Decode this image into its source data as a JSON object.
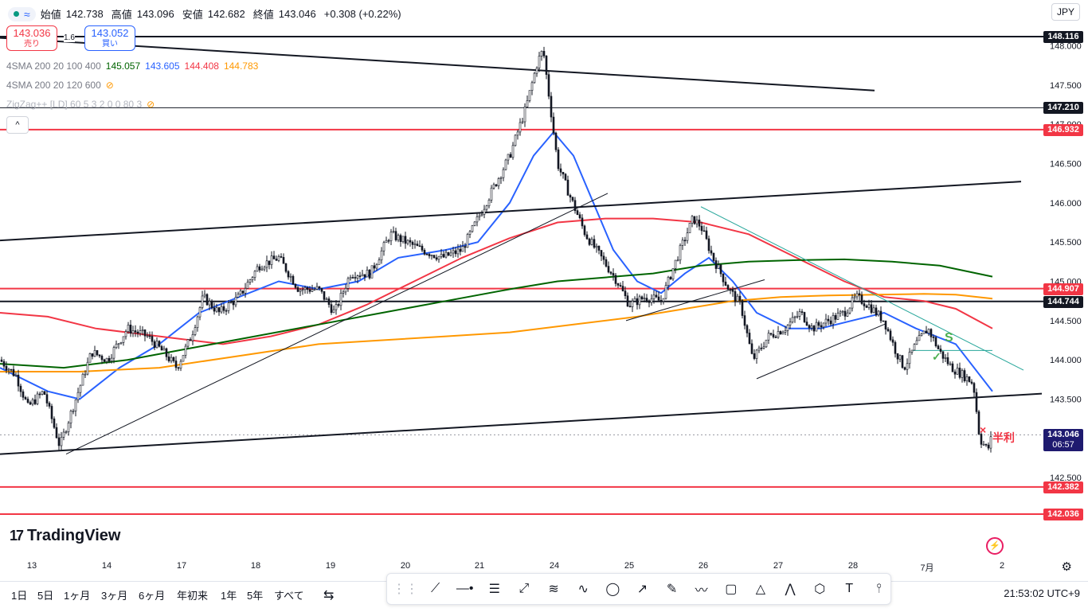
{
  "header": {
    "open_label": "始値",
    "open": "142.738",
    "high_label": "高値",
    "high": "143.096",
    "low_label": "安値",
    "low": "142.682",
    "close_label": "終値",
    "close": "143.046",
    "change": "+0.308 (+0.22%)",
    "currency": "JPY"
  },
  "trade": {
    "sell_price": "143.036",
    "sell_label": "売り",
    "buy_price": "143.052",
    "buy_label": "買い",
    "spread": "1.6"
  },
  "indicators": [
    {
      "name": "4SMA 200 20 100 400",
      "values": [
        "145.057",
        "143.605",
        "144.408",
        "144.783"
      ]
    },
    {
      "name": "4SMA 200 20 120 600",
      "values": []
    },
    {
      "name": "ZigZag++ [LD] 60 5 3 2 0 0 80 3",
      "values": []
    }
  ],
  "price_labels": [
    {
      "price": 148.116,
      "text": "148.116",
      "color": "#131722"
    },
    {
      "price": 147.21,
      "text": "147.210",
      "color": "#131722"
    },
    {
      "price": 146.932,
      "text": "146.932",
      "color": "#f23645"
    },
    {
      "price": 144.907,
      "text": "144.907",
      "color": "#f23645"
    },
    {
      "price": 144.744,
      "text": "144.744",
      "color": "#131722"
    },
    {
      "price": 142.382,
      "text": "142.382",
      "color": "#f23645"
    },
    {
      "price": 142.036,
      "text": "142.036",
      "color": "#f23645"
    }
  ],
  "current": {
    "price": 143.046,
    "text": "143.046",
    "countdown": "06:57",
    "color": "#1e1a6f"
  },
  "annotations": {
    "half": "半利",
    "s": "S"
  },
  "logo": "TradingView",
  "ranges": [
    "1日",
    "5日",
    "1ヶ月",
    "3ヶ月",
    "6ヶ月",
    "年初来",
    "1年",
    "5年",
    "すべて"
  ],
  "time": "21:53:02 UTC+9",
  "chart_data": {
    "type": "candlestick",
    "ylim": [
      142.2,
      148.2
    ],
    "yticks": [
      "148.000",
      "147.500",
      "147.000",
      "146.500",
      "146.000",
      "145.500",
      "145.000",
      "144.500",
      "144.000",
      "143.500",
      "143.000",
      "142.500"
    ],
    "xticks": [
      "13",
      "14",
      "17",
      "18",
      "19",
      "20",
      "21",
      "24",
      "25",
      "26",
      "27",
      "28",
      "7月",
      "2"
    ],
    "close_path": [
      [
        0,
        144.0
      ],
      [
        20,
        143.8
      ],
      [
        35,
        143.4
      ],
      [
        55,
        143.6
      ],
      [
        75,
        142.9
      ],
      [
        95,
        143.5
      ],
      [
        115,
        144.1
      ],
      [
        135,
        144.0
      ],
      [
        160,
        144.4
      ],
      [
        185,
        144.3
      ],
      [
        205,
        144.1
      ],
      [
        222,
        143.9
      ],
      [
        240,
        144.3
      ],
      [
        255,
        144.8
      ],
      [
        275,
        144.6
      ],
      [
        300,
        144.8
      ],
      [
        325,
        145.2
      ],
      [
        350,
        145.3
      ],
      [
        375,
        144.9
      ],
      [
        400,
        144.9
      ],
      [
        420,
        144.6
      ],
      [
        440,
        145.1
      ],
      [
        465,
        145.1
      ],
      [
        490,
        145.6
      ],
      [
        510,
        145.5
      ],
      [
        530,
        145.4
      ],
      [
        555,
        145.3
      ],
      [
        580,
        145.4
      ],
      [
        600,
        145.8
      ],
      [
        620,
        146.2
      ],
      [
        640,
        146.6
      ],
      [
        660,
        147.2
      ],
      [
        675,
        147.8
      ],
      [
        682,
        147.95
      ],
      [
        690,
        147.3
      ],
      [
        700,
        146.5
      ],
      [
        715,
        146.1
      ],
      [
        735,
        145.6
      ],
      [
        755,
        145.3
      ],
      [
        775,
        145.0
      ],
      [
        790,
        144.7
      ],
      [
        810,
        144.8
      ],
      [
        830,
        144.75
      ],
      [
        850,
        145.3
      ],
      [
        870,
        145.8
      ],
      [
        880,
        145.7
      ],
      [
        895,
        145.3
      ],
      [
        915,
        144.9
      ],
      [
        930,
        144.7
      ],
      [
        945,
        144.0
      ],
      [
        965,
        144.3
      ],
      [
        985,
        144.4
      ],
      [
        1005,
        144.6
      ],
      [
        1020,
        144.4
      ],
      [
        1040,
        144.5
      ],
      [
        1060,
        144.6
      ],
      [
        1075,
        144.8
      ],
      [
        1090,
        144.7
      ],
      [
        1110,
        144.5
      ],
      [
        1125,
        144.1
      ],
      [
        1135,
        143.9
      ],
      [
        1150,
        144.2
      ],
      [
        1165,
        144.4
      ],
      [
        1180,
        144.1
      ],
      [
        1195,
        143.9
      ],
      [
        1210,
        143.8
      ],
      [
        1222,
        143.7
      ],
      [
        1230,
        143.0
      ],
      [
        1240,
        142.85
      ],
      [
        1246,
        143.05
      ]
    ],
    "series": [
      {
        "values": [
          [
            0,
            143.9
          ],
          [
            60,
            143.6
          ],
          [
            100,
            143.5
          ],
          [
            150,
            143.9
          ],
          [
            200,
            144.2
          ],
          [
            250,
            144.6
          ],
          [
            300,
            144.8
          ],
          [
            350,
            145.0
          ],
          [
            400,
            144.9
          ],
          [
            450,
            145.0
          ],
          [
            500,
            145.3
          ],
          [
            560,
            145.4
          ],
          [
            600,
            145.5
          ],
          [
            640,
            146.0
          ],
          [
            670,
            146.6
          ],
          [
            695,
            146.9
          ],
          [
            720,
            146.6
          ],
          [
            745,
            146.0
          ],
          [
            770,
            145.4
          ],
          [
            800,
            145.0
          ],
          [
            830,
            144.85
          ],
          [
            860,
            145.1
          ],
          [
            890,
            145.3
          ],
          [
            920,
            145.0
          ],
          [
            950,
            144.6
          ],
          [
            990,
            144.4
          ],
          [
            1030,
            144.4
          ],
          [
            1070,
            144.5
          ],
          [
            1110,
            144.6
          ],
          [
            1150,
            144.4
          ],
          [
            1200,
            144.2
          ],
          [
            1246,
            143.6
          ]
        ],
        "color": "#2962ff"
      },
      {
        "values": [
          [
            0,
            144.6
          ],
          [
            60,
            144.55
          ],
          [
            120,
            144.4
          ],
          [
            200,
            144.3
          ],
          [
            280,
            144.2
          ],
          [
            340,
            144.3
          ],
          [
            400,
            144.45
          ],
          [
            460,
            144.7
          ],
          [
            520,
            145.0
          ],
          [
            580,
            145.3
          ],
          [
            640,
            145.55
          ],
          [
            700,
            145.75
          ],
          [
            760,
            145.8
          ],
          [
            820,
            145.8
          ],
          [
            880,
            145.75
          ],
          [
            940,
            145.6
          ],
          [
            1000,
            145.3
          ],
          [
            1060,
            145.0
          ],
          [
            1110,
            144.8
          ],
          [
            1160,
            144.75
          ],
          [
            1200,
            144.65
          ],
          [
            1246,
            144.4
          ]
        ],
        "color": "#f23645"
      },
      {
        "values": [
          [
            0,
            143.95
          ],
          [
            80,
            143.9
          ],
          [
            160,
            144.0
          ],
          [
            240,
            144.15
          ],
          [
            320,
            144.3
          ],
          [
            400,
            144.45
          ],
          [
            480,
            144.6
          ],
          [
            560,
            144.75
          ],
          [
            640,
            144.9
          ],
          [
            700,
            145.0
          ],
          [
            760,
            145.05
          ],
          [
            820,
            145.1
          ],
          [
            880,
            145.2
          ],
          [
            940,
            145.25
          ],
          [
            1000,
            145.27
          ],
          [
            1060,
            145.28
          ],
          [
            1120,
            145.25
          ],
          [
            1180,
            145.2
          ],
          [
            1246,
            145.06
          ]
        ],
        "color": "#006400"
      },
      {
        "values": [
          [
            0,
            143.85
          ],
          [
            100,
            143.85
          ],
          [
            200,
            143.9
          ],
          [
            300,
            144.05
          ],
          [
            400,
            144.2
          ],
          [
            480,
            144.25
          ],
          [
            560,
            144.3
          ],
          [
            640,
            144.35
          ],
          [
            720,
            144.45
          ],
          [
            800,
            144.55
          ],
          [
            860,
            144.65
          ],
          [
            920,
            144.75
          ],
          [
            980,
            144.8
          ],
          [
            1040,
            144.82
          ],
          [
            1100,
            144.83
          ],
          [
            1160,
            144.84
          ],
          [
            1200,
            144.83
          ],
          [
            1246,
            144.78
          ]
        ],
        "color": "#ff9800"
      }
    ],
    "trendlines": [
      {
        "from": [
          0,
          145.52
        ],
        "to": [
          1282,
          146.27
        ],
        "width": 2
      },
      {
        "from": [
          0,
          142.8
        ],
        "to": [
          1308,
          143.57
        ],
        "width": 2
      },
      {
        "from": [
          0,
          148.1
        ],
        "to": [
          1098,
          147.43
        ],
        "width": 2
      },
      {
        "from": [
          83,
          142.8
        ],
        "to": [
          763,
          146.12
        ],
        "width": 1
      },
      {
        "from": [
          786,
          144.5
        ],
        "to": [
          960,
          145.02
        ],
        "width": 1
      },
      {
        "from": [
          950,
          143.76
        ],
        "to": [
          1112,
          144.46
        ],
        "width": 1
      },
      {
        "from": [
          880,
          145.95
        ],
        "to": [
          1285,
          143.87
        ],
        "width": 1,
        "color": "#26a69a"
      },
      {
        "from": [
          1145,
          144.12
        ],
        "to": [
          1246,
          144.12
        ],
        "width": 1,
        "color": "#26a69a"
      }
    ],
    "hlines": [
      {
        "price": 148.116,
        "color": "#131722",
        "width": 2
      },
      {
        "price": 147.21,
        "color": "#131722",
        "width": 1
      },
      {
        "price": 146.932,
        "color": "#f23645",
        "width": 2
      },
      {
        "price": 144.907,
        "color": "#f23645",
        "width": 2
      },
      {
        "price": 144.744,
        "color": "#131722",
        "width": 2
      },
      {
        "price": 142.382,
        "color": "#f23645",
        "width": 2
      },
      {
        "price": 142.036,
        "color": "#f23645",
        "width": 2
      }
    ]
  }
}
